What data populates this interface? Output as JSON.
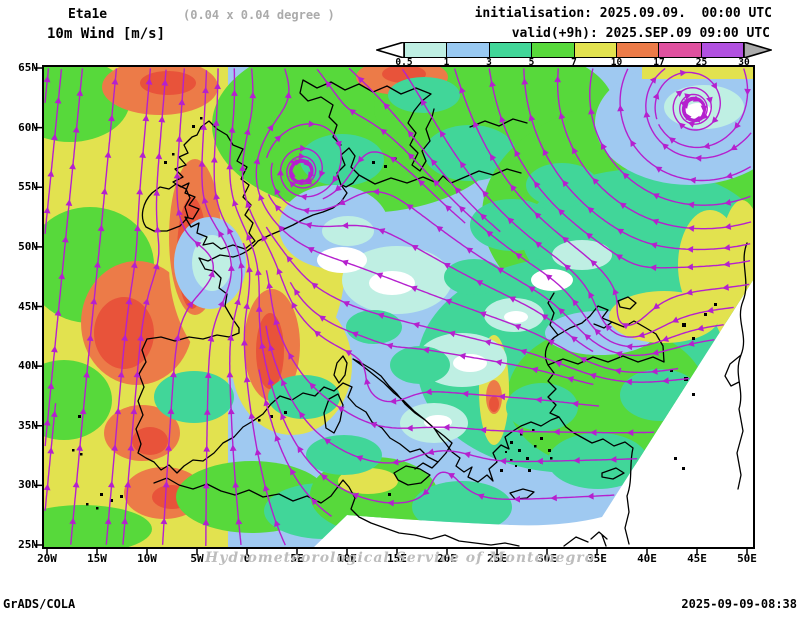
{
  "header": {
    "model": "Eta1e",
    "resolution": "(0.04 x 0.04 degree )",
    "variable": "10m Wind [m/s]",
    "initialisation": "initialisation: 2025.09.09.  00:00 UTC",
    "valid": "valid(+9h): 2025.SEP.09 09:00 UTC"
  },
  "colorbar": {
    "tick_labels": [
      "0.5",
      "1",
      "3",
      "5",
      "7",
      "10",
      "17",
      "25",
      "30"
    ],
    "segment_colors": [
      "#BFEFE3",
      "#99C9F2",
      "#41D699",
      "#57D93B",
      "#E2E24F",
      "#EC7B48",
      "#E0519F",
      "#B151E0"
    ],
    "under_arrow_color": "#FFFFFF",
    "over_arrow_color": "#ABABAB"
  },
  "map": {
    "lat_labels": [
      "65N",
      "60N",
      "55N",
      "50N",
      "45N",
      "40N",
      "35N",
      "30N",
      "25N"
    ],
    "lon_labels": [
      "20W",
      "15W",
      "10W",
      "5W",
      "0",
      "5E",
      "10E",
      "15E",
      "20E",
      "25E",
      "30E",
      "35E",
      "40E",
      "45E",
      "50E"
    ],
    "watermark": "Hydrometeorological Service of Montenegro",
    "streamline_color": "#B520CE",
    "land_outline_color": "#000000",
    "nodata_color": "#FFFFFF",
    "palette": {
      "lightblue": "#9FC9F1",
      "palecyan": "#BFEFE3",
      "white": "#FFFFFF",
      "springgreen": "#41D699",
      "green": "#57D93B",
      "yellow": "#E2E24F",
      "orange": "#EC7B48",
      "red": "#E8533A"
    }
  },
  "footer": {
    "left": "GrADS/COLA",
    "right": "2025-09-09-08:38"
  },
  "chart_data": {
    "type": "map",
    "title": "10m Wind [m/s]",
    "units": "m/s",
    "legend_levels": [
      0.5,
      1,
      3,
      5,
      7,
      10,
      17,
      25,
      30
    ],
    "legend_position": "top-right",
    "notable_features": [
      "large cyclonic spiral near top-right of domain (~45E, 61N)",
      "small spiral eddy near Denmark (~5E, 58N)",
      "eddy over the eastern Black Sea (~37E, 44N)",
      "strong wind band 7-17 m/s over the NE Atlantic, west of Ireland/Scotland and off Portugal",
      "light winds 1-3 m/s over central, southern and eastern Europe",
      "moderate 3-7 m/s winds over the Balkans, Anatolia and around the Black Sea"
    ]
  }
}
